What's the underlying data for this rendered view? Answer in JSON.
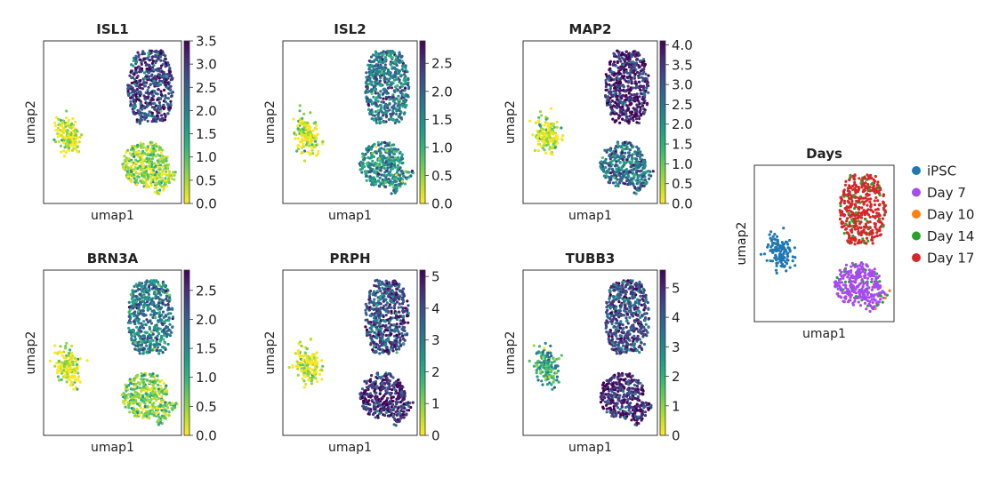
{
  "chart_data": [
    {
      "type": "scatter",
      "title": "ISL1",
      "xlabel": "umap1",
      "ylabel": "umap2",
      "colormap": "viridis_r",
      "colorbar": {
        "min": 0,
        "max": 3.5,
        "ticks": [
          "0.0",
          "0.5",
          "1.0",
          "1.5",
          "2.0",
          "2.5",
          "3.0",
          "3.5"
        ],
        "tick_values": [
          0,
          0.5,
          1,
          1.5,
          2,
          2.5,
          3,
          3.5
        ]
      },
      "clusters": {
        "left": 0.1,
        "top_right": 2.8,
        "bottom_right": 0.5
      }
    },
    {
      "type": "scatter",
      "title": "ISL2",
      "xlabel": "umap1",
      "ylabel": "umap2",
      "colormap": "viridis_r",
      "colorbar": {
        "min": 0,
        "max": 2.9,
        "ticks": [
          "0.0",
          "0.5",
          "1.0",
          "1.5",
          "2.0",
          "2.5"
        ],
        "tick_values": [
          0,
          0.5,
          1,
          1.5,
          2,
          2.5
        ]
      },
      "clusters": {
        "left": 0.1,
        "top_right": 1.7,
        "bottom_right": 1.5
      }
    },
    {
      "type": "scatter",
      "title": "MAP2",
      "xlabel": "umap1",
      "ylabel": "umap2",
      "colormap": "viridis_r",
      "colorbar": {
        "min": 0,
        "max": 4.1,
        "ticks": [
          "0.0",
          "0.5",
          "1.0",
          "1.5",
          "2.0",
          "2.5",
          "3.0",
          "3.5",
          "4.0"
        ],
        "tick_values": [
          0,
          0.5,
          1,
          1.5,
          2,
          2.5,
          3,
          3.5,
          4
        ]
      },
      "clusters": {
        "left": 0.2,
        "top_right": 3.7,
        "bottom_right": 2.6
      }
    },
    {
      "type": "scatter",
      "title": "BRN3A",
      "xlabel": "umap1",
      "ylabel": "umap2",
      "colormap": "viridis_r",
      "colorbar": {
        "min": 0,
        "max": 2.85,
        "ticks": [
          "0.0",
          "0.5",
          "1.0",
          "1.5",
          "2.0",
          "2.5"
        ],
        "tick_values": [
          0,
          0.5,
          1,
          1.5,
          2,
          2.5
        ]
      },
      "clusters": {
        "left": 0.1,
        "top_right": 1.6,
        "bottom_right": 0.6
      }
    },
    {
      "type": "scatter",
      "title": "PRPH",
      "xlabel": "umap1",
      "ylabel": "umap2",
      "colormap": "viridis_r",
      "colorbar": {
        "min": 0,
        "max": 5.2,
        "ticks": [
          "0",
          "1",
          "2",
          "3",
          "4",
          "5"
        ],
        "tick_values": [
          0,
          1,
          2,
          3,
          4,
          5
        ]
      },
      "clusters": {
        "left": 0.2,
        "top_right": 3.9,
        "bottom_right": 4.6
      }
    },
    {
      "type": "scatter",
      "title": "TUBB3",
      "xlabel": "umap1",
      "ylabel": "umap2",
      "colormap": "viridis_r",
      "colorbar": {
        "min": 0,
        "max": 5.6,
        "ticks": [
          "0",
          "1",
          "2",
          "3",
          "4",
          "5"
        ],
        "tick_values": [
          0,
          1,
          2,
          3,
          4,
          5
        ]
      },
      "clusters": {
        "left": 2.2,
        "top_right": 4.2,
        "bottom_right": 5.0
      }
    },
    {
      "type": "scatter",
      "title": "Days",
      "xlabel": "umap1",
      "ylabel": "umap2",
      "legend": [
        {
          "name": "iPSC",
          "color": "#1f77b4"
        },
        {
          "name": "Day 7",
          "color": "#a64bf0"
        },
        {
          "name": "Day 10",
          "color": "#ff7f0e"
        },
        {
          "name": "Day 14",
          "color": "#2ca02c"
        },
        {
          "name": "Day 17",
          "color": "#d62728"
        }
      ],
      "legend_position": "right"
    }
  ]
}
